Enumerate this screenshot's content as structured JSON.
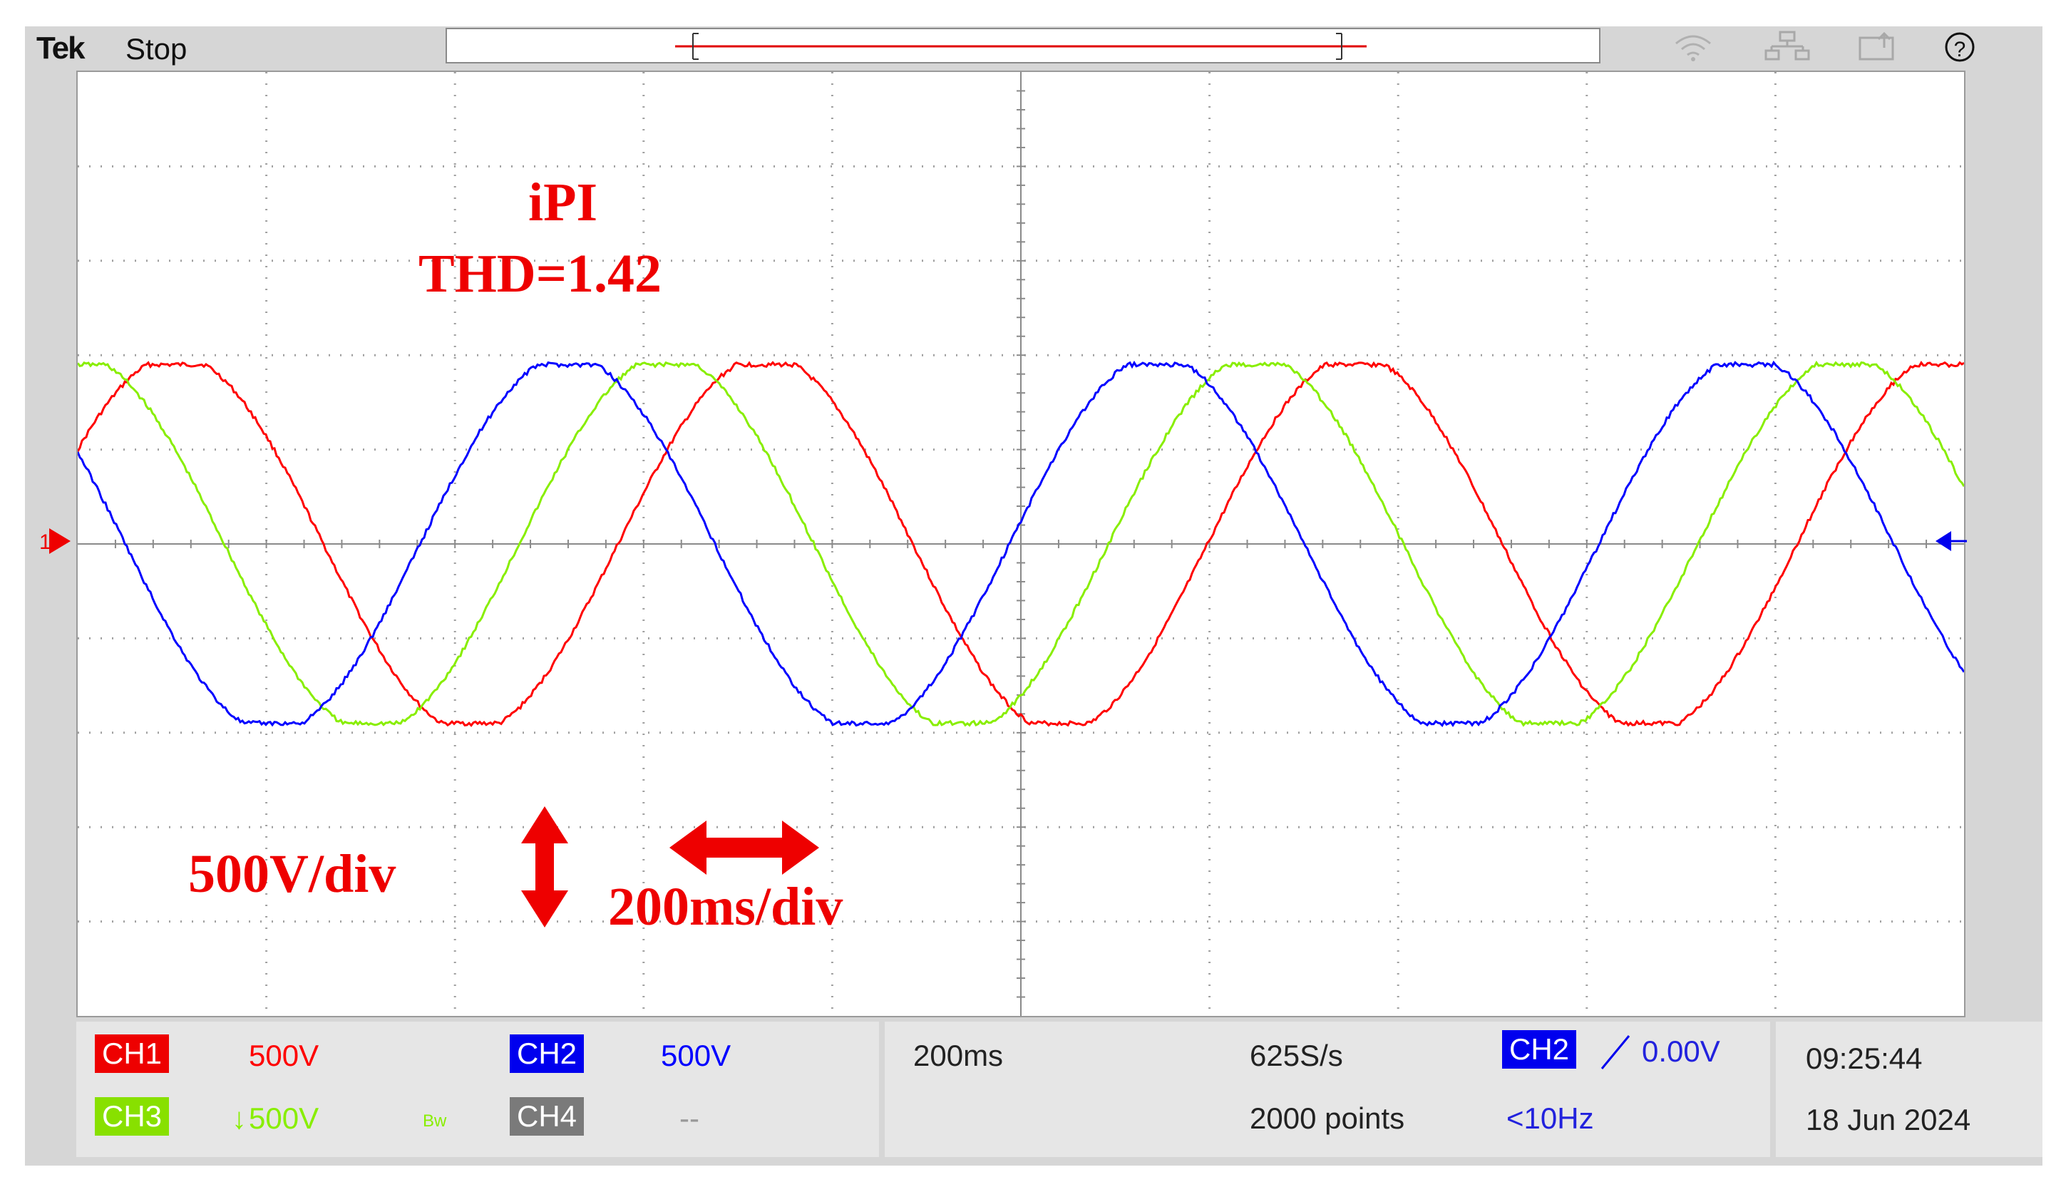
{
  "topbar": {
    "brand": "Tek",
    "acquisition_state": "Stop",
    "icons": [
      "wifi-icon",
      "network-icon",
      "export-icon",
      "help-icon"
    ]
  },
  "annotations": {
    "controller": "iPI",
    "thd": "THD=1.42",
    "volts_per_div": "500V/div",
    "time_per_div": "200ms/div"
  },
  "markers": {
    "ch_ground_marker": "1",
    "trigger_level_marker": "trigger"
  },
  "channels": [
    {
      "name": "CH1",
      "scale": "500V",
      "color": "#ff0000",
      "badge_bg": "#ee0000"
    },
    {
      "name": "CH2",
      "scale": "500V",
      "color": "#0000ff",
      "badge_bg": "#0000ee"
    },
    {
      "name": "CH3",
      "scale": "500V",
      "color": "#88ee00",
      "badge_bg": "#88e000"
    },
    {
      "name": "CH4",
      "scale": "--",
      "color": "#888888",
      "badge_bg": "#7a7a7a"
    }
  ],
  "ch3_extras": {
    "coupling_symbol": "↓",
    "bw_symbol": "Bw"
  },
  "horizontal": {
    "time_per_div": "200ms",
    "sample_rate": "625S/s",
    "record_length": "2000 points"
  },
  "trigger": {
    "source": "CH2",
    "slope": "rising",
    "level": "0.00V",
    "frequency": "<10Hz"
  },
  "clock": {
    "time": "09:25:44",
    "date": "18 Jun 2024"
  },
  "chart_data": {
    "type": "line",
    "title": "",
    "x": {
      "unit": "ms",
      "per_div": 200,
      "divisions": 10,
      "range": [
        0,
        2000
      ]
    },
    "y": {
      "unit": "V",
      "per_div": 500,
      "divisions": 10,
      "range": [
        -2500,
        2500
      ]
    },
    "grid": true,
    "waveform": {
      "amplitude_div": 1.9,
      "period_ms": 625,
      "offset_div": 0.0
    },
    "series": [
      {
        "name": "CH1",
        "color": "#ff0000",
        "phase_ms": 0
      },
      {
        "name": "CH3",
        "color": "#88ee00",
        "phase_ms": -105
      },
      {
        "name": "CH2",
        "color": "#0000ff",
        "phase_ms": -210
      }
    ]
  }
}
